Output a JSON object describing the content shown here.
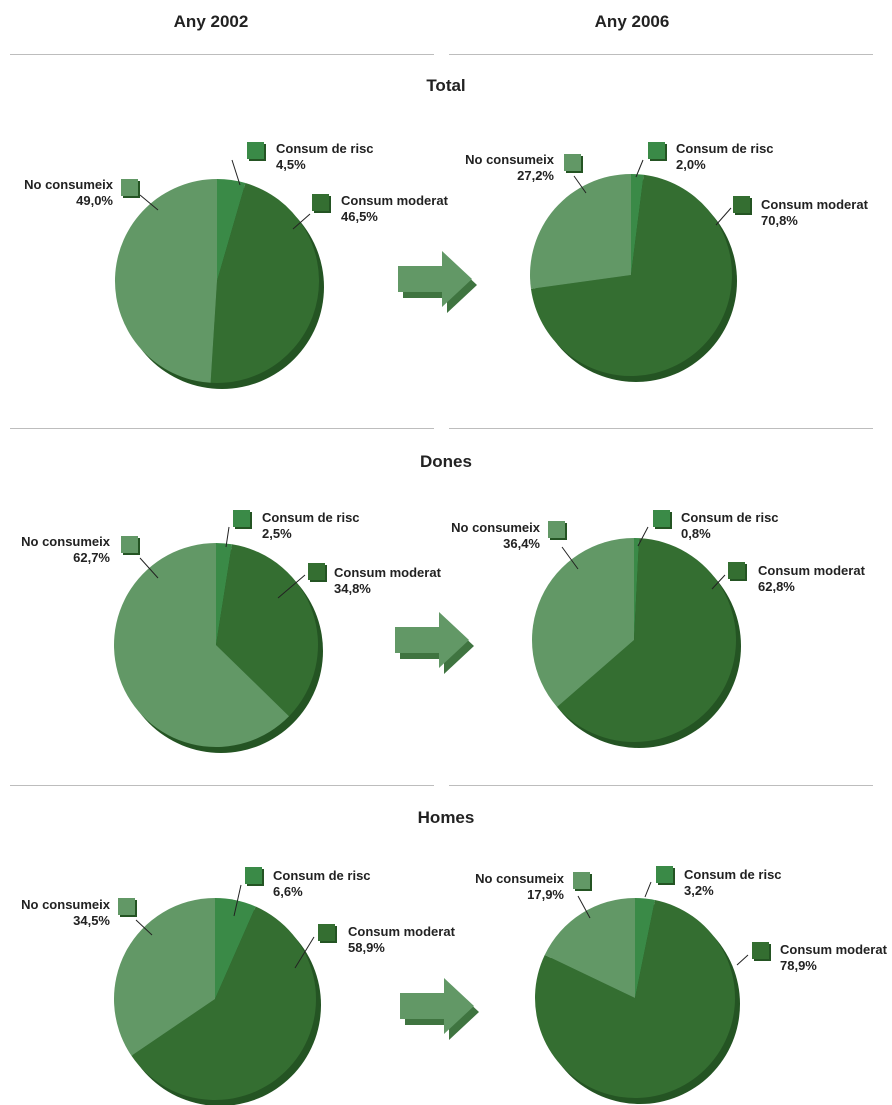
{
  "headers": {
    "left": "Any 2002",
    "right": "Any 2006"
  },
  "colors": {
    "no_consumeix": "#629866",
    "consum_risc": "#3a8a47",
    "consum_moderat": "#346e31",
    "shadow": "#245423",
    "arrow": "#629866",
    "arrow_shadow": "#3f7440"
  },
  "legend_labels": {
    "risc": "Consum de risc",
    "moderat": "Consum moderat",
    "no": "No consumeix"
  },
  "chart_data": [
    {
      "type": "pie",
      "section": "Total",
      "year": "Any 2002",
      "slices": [
        {
          "name": "Consum de risc",
          "value": 4.5,
          "label": "4,5%"
        },
        {
          "name": "Consum moderat",
          "value": 46.5,
          "label": "46,5%"
        },
        {
          "name": "No consumeix",
          "value": 49.0,
          "label": "49,0%"
        }
      ]
    },
    {
      "type": "pie",
      "section": "Total",
      "year": "Any 2006",
      "slices": [
        {
          "name": "Consum de risc",
          "value": 2.0,
          "label": "2,0%"
        },
        {
          "name": "Consum moderat",
          "value": 70.8,
          "label": "70,8%"
        },
        {
          "name": "No consumeix",
          "value": 27.2,
          "label": "27,2%"
        }
      ]
    },
    {
      "type": "pie",
      "section": "Dones",
      "year": "Any 2002",
      "slices": [
        {
          "name": "Consum de risc",
          "value": 2.5,
          "label": "2,5%"
        },
        {
          "name": "Consum moderat",
          "value": 34.8,
          "label": "34,8%"
        },
        {
          "name": "No consumeix",
          "value": 62.7,
          "label": "62,7%"
        }
      ]
    },
    {
      "type": "pie",
      "section": "Dones",
      "year": "Any 2006",
      "slices": [
        {
          "name": "Consum de risc",
          "value": 0.8,
          "label": "0,8%"
        },
        {
          "name": "Consum moderat",
          "value": 62.8,
          "label": "62,8%"
        },
        {
          "name": "No consumeix",
          "value": 36.4,
          "label": "36,4%"
        }
      ]
    },
    {
      "type": "pie",
      "section": "Homes",
      "year": "Any 2002",
      "slices": [
        {
          "name": "Consum de risc",
          "value": 6.6,
          "label": "6,6%"
        },
        {
          "name": "Consum moderat",
          "value": 58.9,
          "label": "58,9%"
        },
        {
          "name": "No consumeix",
          "value": 34.5,
          "label": "34,5%"
        }
      ]
    },
    {
      "type": "pie",
      "section": "Homes",
      "year": "Any 2006",
      "slices": [
        {
          "name": "Consum de risc",
          "value": 3.2,
          "label": "3,2%"
        },
        {
          "name": "Consum moderat",
          "value": 78.9,
          "label": "78,9%"
        },
        {
          "name": "No consumeix",
          "value": 17.9,
          "label": "17,9%"
        }
      ]
    }
  ]
}
